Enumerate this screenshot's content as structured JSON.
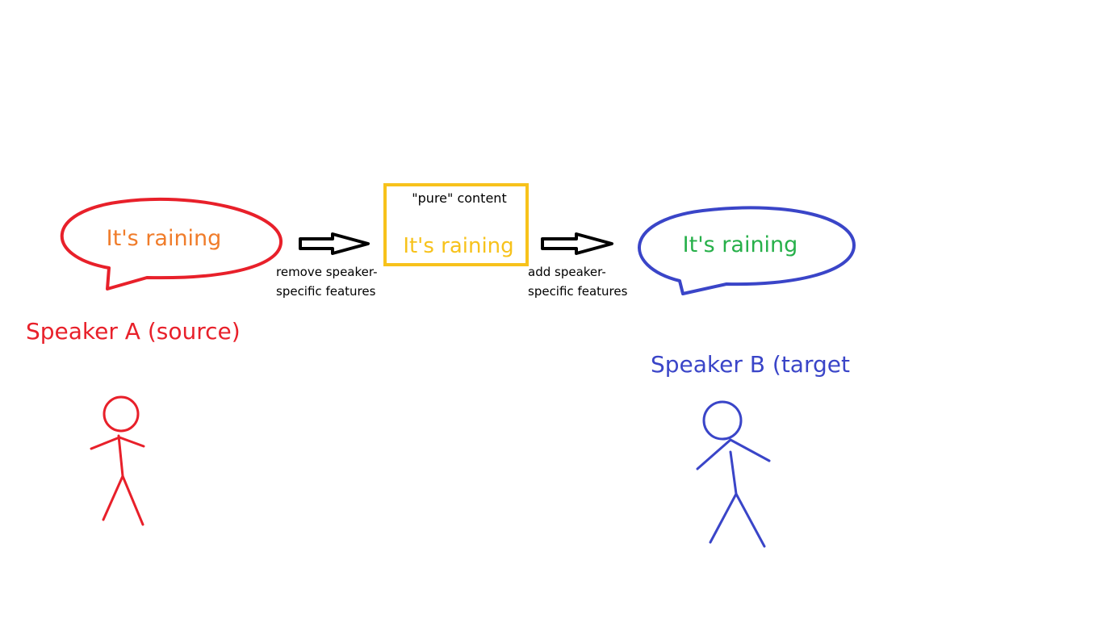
{
  "speaker_a": {
    "bubble_text": "It's raining",
    "label": "Speaker A (source)",
    "color": "#e8202a",
    "text_color": "#f07c2a"
  },
  "content": {
    "title": "\"pure\" content",
    "text": "It's raining",
    "color": "#f7c21b"
  },
  "speaker_b": {
    "bubble_text": "It's raining",
    "label": "Speaker B (target",
    "color": "#3a45c8",
    "text_color": "#27b04a"
  },
  "arrows": {
    "remove_line1": "remove speaker-",
    "remove_line2": "specific features",
    "add_line1": "add speaker-",
    "add_line2": "specific features"
  }
}
